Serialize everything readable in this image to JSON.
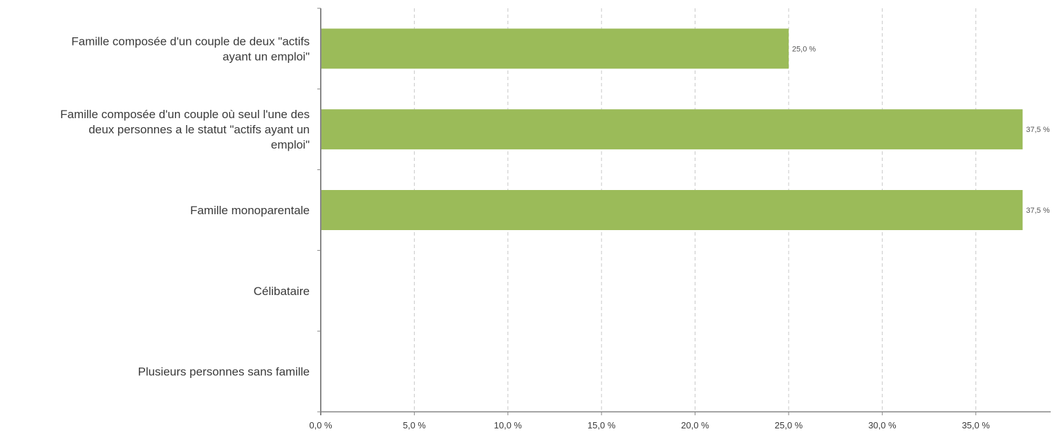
{
  "chart_data": {
    "type": "bar",
    "orientation": "horizontal",
    "title": "",
    "xlabel": "",
    "ylabel": "",
    "xlim": [
      0,
      39
    ],
    "grid": true,
    "legend": "none",
    "categories": [
      "Famille composée d'un couple de deux \"actifs ayant un emploi\"",
      "Famille composée d'un couple où seul l'une des deux personnes a le statut \"actifs ayant un emploi\"",
      "Famille monoparentale",
      "Célibataire",
      "Plusieurs personnes sans famille"
    ],
    "category_lines": [
      [
        "Famille composée d'un couple de deux \"actifs",
        "ayant un emploi\""
      ],
      [
        "Famille composée d'un couple où seul l'une des",
        "deux personnes a le statut \"actifs ayant un",
        "emploi\""
      ],
      [
        "Famille monoparentale"
      ],
      [
        "Célibataire"
      ],
      [
        "Plusieurs personnes sans famille"
      ]
    ],
    "values": [
      25.0,
      37.5,
      37.5,
      0,
      0
    ],
    "data_labels": [
      "25,0 %",
      "37,5 %",
      "37,5 %",
      "",
      ""
    ],
    "x_ticks": [
      0,
      5,
      10,
      15,
      20,
      25,
      30,
      35
    ],
    "x_tick_labels": [
      "0,0 %",
      "5,0 %",
      "10,0 %",
      "15,0 %",
      "20,0 %",
      "25,0 %",
      "30,0 %",
      "35,0 %"
    ],
    "colors": {
      "bar": "#9bbb59",
      "axis": "#868686",
      "grid": "#c8c8c8"
    }
  }
}
